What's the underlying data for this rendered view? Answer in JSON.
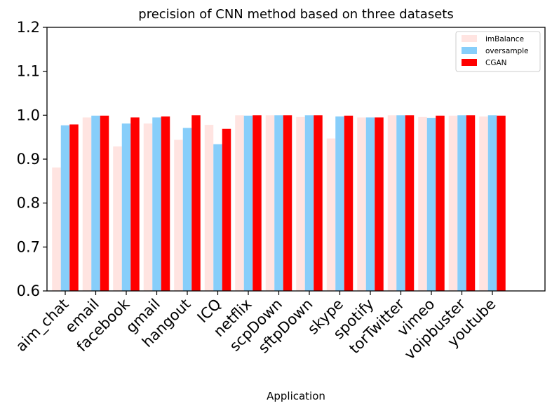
{
  "chart_data": {
    "type": "bar",
    "title": "precision of CNN method based on three datasets",
    "xlabel": "Application",
    "ylabel": "",
    "ylim": [
      0.6,
      1.2
    ],
    "yticks": [
      "0.6",
      "0.7",
      "0.8",
      "0.9",
      "1.0",
      "1.1",
      "1.2"
    ],
    "grid": false,
    "legend_position": "top-right",
    "categories": [
      "aim_chat",
      "email",
      "facebook",
      "gmail",
      "hangout",
      "ICQ",
      "netflix",
      "scpDown",
      "sftpDown",
      "skype",
      "spotify",
      "torTwitter",
      "vimeo",
      "voipbuster",
      "youtube"
    ],
    "series": [
      {
        "name": "imBalance",
        "color": "#ffe4e1",
        "values": [
          0.881,
          0.995,
          0.929,
          0.981,
          0.944,
          0.978,
          1.0,
          1.0,
          0.996,
          0.947,
          0.995,
          1.0,
          0.996,
          0.999,
          0.997
        ]
      },
      {
        "name": "oversample",
        "color": "#87cefa",
        "values": [
          0.977,
          0.999,
          0.981,
          0.995,
          0.971,
          0.934,
          0.999,
          1.0,
          1.0,
          0.997,
          0.995,
          1.0,
          0.994,
          1.0,
          1.0
        ]
      },
      {
        "name": "CGAN",
        "color": "#ff0000",
        "values": [
          0.979,
          0.999,
          0.995,
          0.997,
          1.0,
          0.969,
          1.0,
          1.0,
          1.0,
          0.999,
          0.995,
          1.0,
          0.999,
          1.0,
          0.999
        ]
      }
    ]
  }
}
